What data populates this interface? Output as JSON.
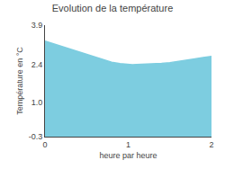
{
  "chart_data": {
    "type": "area",
    "title": "Evolution de la température",
    "xlabel": "heure par heure",
    "ylabel": "Température en °C",
    "x": [
      0,
      0.05,
      0.1,
      0.2,
      0.3,
      0.4,
      0.5,
      0.6,
      0.7,
      0.8,
      0.9,
      1.0,
      1.05,
      1.1,
      1.2,
      1.3,
      1.4,
      1.5,
      1.6,
      1.7,
      1.8,
      1.9,
      2.0
    ],
    "values": [
      3.3,
      3.25,
      3.2,
      3.1,
      3.0,
      2.9,
      2.8,
      2.7,
      2.6,
      2.5,
      2.45,
      2.42,
      2.41,
      2.42,
      2.43,
      2.44,
      2.46,
      2.49,
      2.53,
      2.58,
      2.63,
      2.68,
      2.72
    ],
    "color": "#7dcde0",
    "xlim": [
      0,
      2
    ],
    "ylim": [
      -0.3,
      3.9
    ],
    "xticks": [
      0,
      1,
      2
    ],
    "yticks": [
      -0.3,
      {
        "value": 1.0,
        "label": "1.0"
      },
      2.4,
      3.9
    ],
    "grid": false
  }
}
